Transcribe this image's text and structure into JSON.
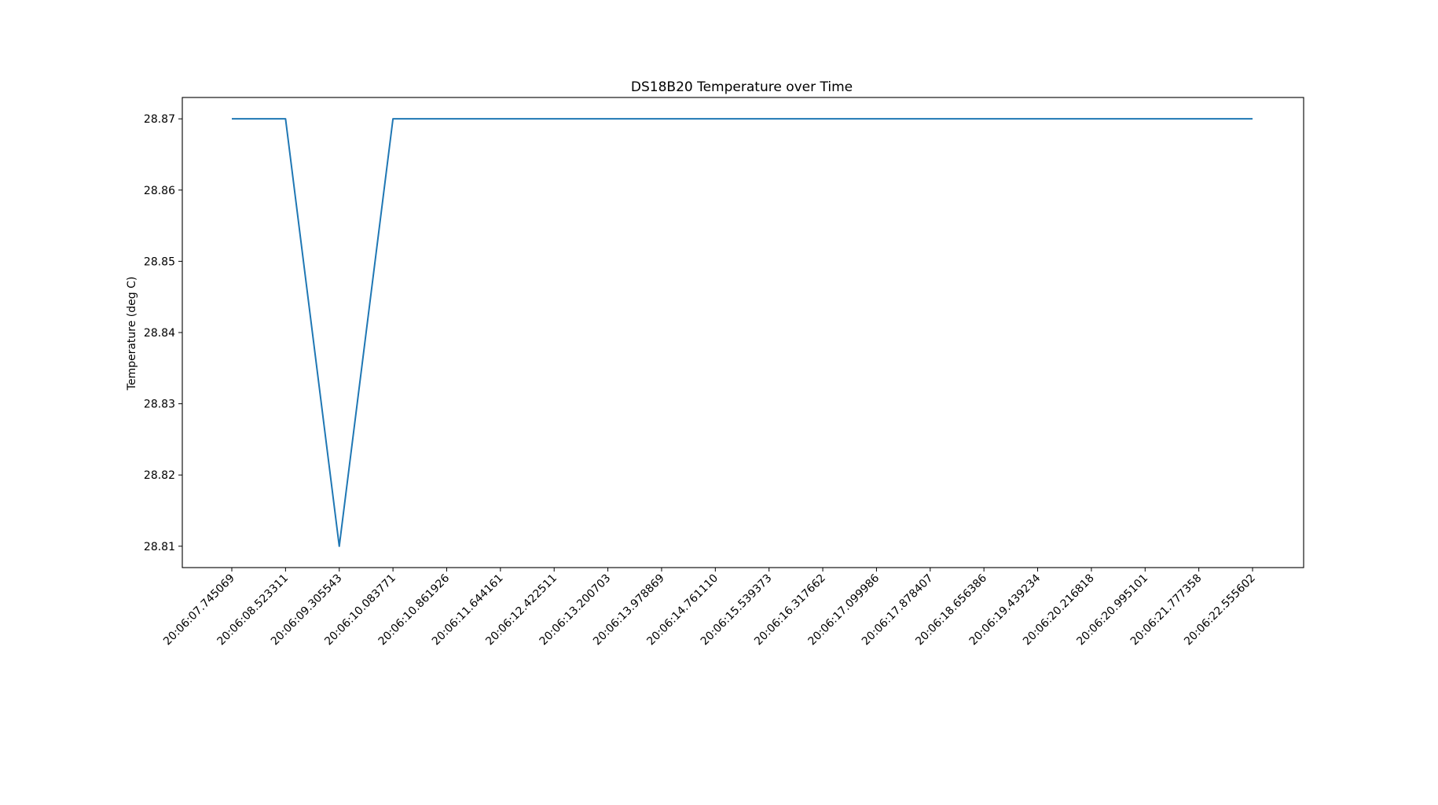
{
  "chart_data": {
    "type": "line",
    "title": "DS18B20 Temperature over Time",
    "xlabel": "",
    "ylabel": "Temperature (deg C)",
    "x": [
      "20:06:07.745069",
      "20:06:08.523311",
      "20:06:09.305543",
      "20:06:10.083771",
      "20:06:10.861926",
      "20:06:11.644161",
      "20:06:12.422511",
      "20:06:13.200703",
      "20:06:13.978869",
      "20:06:14.761110",
      "20:06:15.539373",
      "20:06:16.317662",
      "20:06:17.099986",
      "20:06:17.878407",
      "20:06:18.656386",
      "20:06:19.439234",
      "20:06:20.216818",
      "20:06:20.995101",
      "20:06:21.777358",
      "20:06:22.555602"
    ],
    "series": [
      {
        "values": [
          28.87,
          28.87,
          28.81,
          28.87,
          28.87,
          28.87,
          28.87,
          28.87,
          28.87,
          28.87,
          28.87,
          28.87,
          28.87,
          28.87,
          28.87,
          28.87,
          28.87,
          28.87,
          28.87,
          28.87
        ],
        "color": "#1f77b4"
      }
    ],
    "yticks": [
      "28.81",
      "28.82",
      "28.83",
      "28.84",
      "28.85",
      "28.86",
      "28.87"
    ],
    "ylim": [
      28.807,
      28.873
    ],
    "grid": false,
    "legend": "none"
  }
}
